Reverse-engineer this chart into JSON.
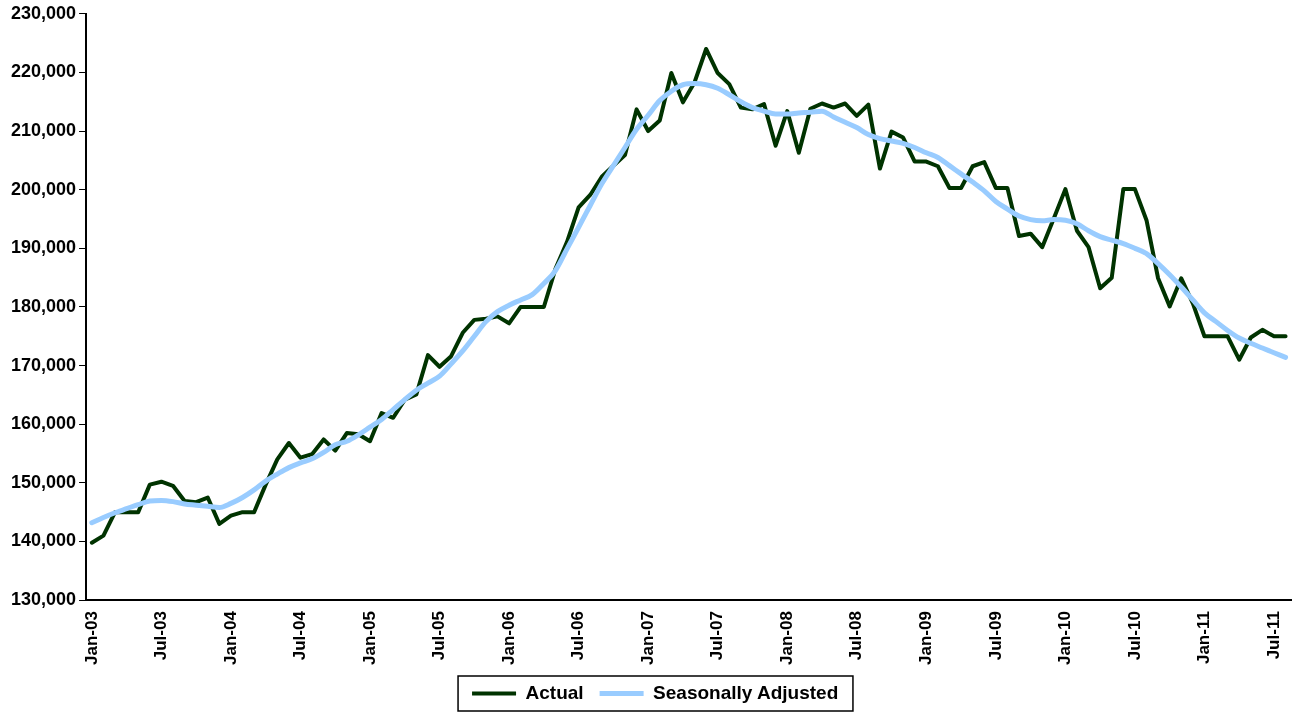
{
  "chart_data": {
    "type": "line",
    "categories": [
      "Jan-03",
      null,
      null,
      null,
      null,
      null,
      "Jul-03",
      null,
      null,
      null,
      null,
      null,
      "Jan-04",
      null,
      null,
      null,
      null,
      null,
      "Jul-04",
      null,
      null,
      null,
      null,
      null,
      "Jan-05",
      null,
      null,
      null,
      null,
      null,
      "Jul-05",
      null,
      null,
      null,
      null,
      null,
      "Jan-06",
      null,
      null,
      null,
      null,
      null,
      "Jul-06",
      null,
      null,
      null,
      null,
      null,
      "Jan-07",
      null,
      null,
      null,
      null,
      null,
      "Jul-07",
      null,
      null,
      null,
      null,
      null,
      "Jan-08",
      null,
      null,
      null,
      null,
      null,
      "Jul-08",
      null,
      null,
      null,
      null,
      null,
      "Jan-09",
      null,
      null,
      null,
      null,
      null,
      "Jul-09",
      null,
      null,
      null,
      null,
      null,
      "Jan-10",
      null,
      null,
      null,
      null,
      null,
      "Jul-10",
      null,
      null,
      null,
      null,
      null,
      "Jan-11",
      null,
      null,
      null,
      null,
      null,
      "Jul-11",
      null
    ],
    "series": [
      {
        "name": "Actual",
        "color": "#003300",
        "values": [
          139800,
          141000,
          145000,
          145000,
          145000,
          149700,
          150200,
          149500,
          146900,
          146700,
          147500,
          143000,
          144400,
          145000,
          145000,
          149700,
          154000,
          156800,
          154300,
          154900,
          157400,
          155500,
          158500,
          158300,
          157100,
          161900,
          161100,
          164200,
          165100,
          171800,
          169800,
          171600,
          175600,
          177800,
          178000,
          178400,
          177200,
          180000,
          180000,
          180000,
          186500,
          191100,
          197000,
          199100,
          202200,
          204100,
          205900,
          213700,
          210000,
          211800,
          219900,
          214900,
          218300,
          224000,
          219900,
          218000,
          214000,
          213700,
          214600,
          207500,
          213400,
          206300,
          213800,
          214700,
          214000,
          214700,
          212600,
          214500,
          203600,
          209900,
          208900,
          204800,
          204800,
          204000,
          200300,
          200300,
          204000,
          204700,
          200300,
          200300,
          192100,
          192500,
          190200,
          195100,
          200100,
          193000,
          190200,
          183200,
          185000,
          200100,
          200100,
          194800,
          184900,
          180100,
          184900,
          180600,
          175000,
          175000,
          175000,
          171000,
          174800,
          176100,
          175000,
          175000
        ]
      },
      {
        "name": "Seasonally Adjusted",
        "color": "#99ccff",
        "values": [
          143200,
          144100,
          144900,
          145600,
          146300,
          146900,
          147000,
          146800,
          146400,
          146200,
          146000,
          145800,
          146500,
          147500,
          148800,
          150300,
          151500,
          152600,
          153400,
          154100,
          155200,
          156500,
          157100,
          158200,
          159500,
          160800,
          162500,
          164200,
          165800,
          167000,
          168200,
          170300,
          172500,
          175000,
          177500,
          179200,
          180300,
          181200,
          182100,
          184000,
          186200,
          189900,
          193600,
          197300,
          201000,
          204100,
          207200,
          210300,
          212700,
          215200,
          216800,
          217900,
          218100,
          217900,
          217300,
          216200,
          215000,
          214000,
          213400,
          212900,
          212900,
          213100,
          213200,
          213400,
          212400,
          211500,
          210600,
          209400,
          208700,
          208300,
          207900,
          207200,
          206300,
          205500,
          204100,
          202700,
          201300,
          199800,
          198000,
          196700,
          195500,
          194900,
          194700,
          194900,
          194800,
          194200,
          193000,
          192000,
          191400,
          190800,
          190000,
          189100,
          187400,
          185500,
          183400,
          181200,
          179000,
          177500,
          176000,
          174700,
          173800,
          173000,
          172200,
          171400
        ]
      }
    ],
    "ylim": [
      130000,
      230000
    ],
    "yticks": [
      {
        "value": 130000,
        "label": "130,000"
      },
      {
        "value": 140000,
        "label": "140,000"
      },
      {
        "value": 150000,
        "label": "150,000"
      },
      {
        "value": 160000,
        "label": "160,000"
      },
      {
        "value": 170000,
        "label": "170,000"
      },
      {
        "value": 180000,
        "label": "180,000"
      },
      {
        "value": 190000,
        "label": "190,000"
      },
      {
        "value": 200000,
        "label": "200,000"
      },
      {
        "value": 210000,
        "label": "210,000"
      },
      {
        "value": 220000,
        "label": "220,000"
      },
      {
        "value": 230000,
        "label": "230,000"
      }
    ],
    "grid": false,
    "legend": "bottom",
    "marker": "none",
    "line_style": "solid"
  }
}
